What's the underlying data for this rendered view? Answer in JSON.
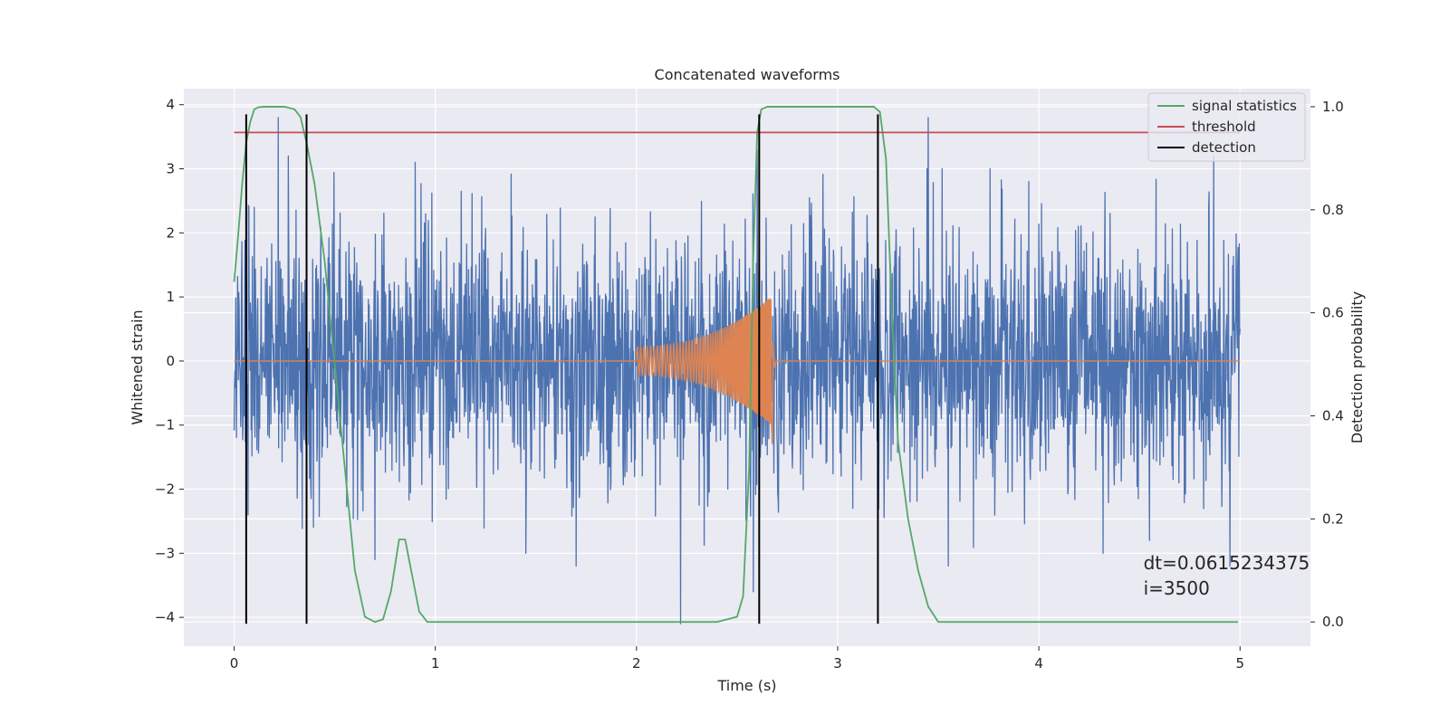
{
  "chart_data": {
    "type": "line",
    "title": "Concatenated waveforms",
    "xlabel": "Time (s)",
    "ylabel": "Whitened strain",
    "y2label": "Detection probability",
    "xlim": [
      -0.25,
      5.35
    ],
    "ylim": [
      -4.45,
      4.25
    ],
    "y2lim": [
      -0.047,
      1.035
    ],
    "xticks": [
      0,
      1,
      2,
      3,
      4,
      5
    ],
    "xtick_labels": [
      "0",
      "1",
      "2",
      "3",
      "4",
      "5"
    ],
    "yticks": [
      -4,
      -3,
      -2,
      -1,
      0,
      1,
      2,
      3,
      4
    ],
    "ytick_labels": [
      "−4",
      "−3",
      "−2",
      "−1",
      "0",
      "1",
      "2",
      "3",
      "4"
    ],
    "y2ticks": [
      0.0,
      0.2,
      0.4,
      0.6,
      0.8,
      1.0
    ],
    "y2tick_labels": [
      "0.0",
      "0.2",
      "0.4",
      "0.6",
      "0.8",
      "1.0"
    ],
    "grid": true,
    "legend_position": "top-right",
    "legend": [
      {
        "label": "signal statistics",
        "color": "#55a868"
      },
      {
        "label": "threshold",
        "color": "#c44e52"
      },
      {
        "label": "detection",
        "color": "#000000"
      }
    ],
    "series": [
      {
        "kind": "noise",
        "axis": "left",
        "color": "#4c72b0",
        "x_range": [
          0,
          5
        ],
        "typical_amplitude": 1.0,
        "extremes": [
          {
            "x": 0.1,
            "y": 2.4
          },
          {
            "x": 0.22,
            "y": 3.8
          },
          {
            "x": 0.27,
            "y": 3.2
          },
          {
            "x": 0.07,
            "y": -2.4
          },
          {
            "x": 0.7,
            "y": -3.1
          },
          {
            "x": 0.9,
            "y": 3.1
          },
          {
            "x": 1.45,
            "y": -3.0
          },
          {
            "x": 1.7,
            "y": -3.2
          },
          {
            "x": 2.22,
            "y": -4.1
          },
          {
            "x": 2.58,
            "y": -3.6
          },
          {
            "x": 2.6,
            "y": 3.3
          },
          {
            "x": 3.45,
            "y": 3.8
          },
          {
            "x": 3.55,
            "y": -3.2
          },
          {
            "x": 3.95,
            "y": 2.8
          },
          {
            "x": 4.55,
            "y": -2.8
          },
          {
            "x": 4.87,
            "y": 3.2
          },
          {
            "x": 4.95,
            "y": -3.2
          }
        ]
      },
      {
        "kind": "chirp",
        "axis": "left",
        "color": "#dd8452",
        "x_range": [
          0,
          5
        ],
        "chirp_start": 2.0,
        "chirp_peak": 2.67,
        "start_amplitude": 0.22,
        "peak_amplitude": 1.0,
        "min_value": -1.3
      },
      {
        "name": "signal statistics",
        "axis": "right",
        "color": "#55a868",
        "x": [
          0,
          0.02,
          0.04,
          0.06,
          0.08,
          0.1,
          0.12,
          0.15,
          0.2,
          0.25,
          0.3,
          0.33,
          0.36,
          0.4,
          0.45,
          0.5,
          0.55,
          0.6,
          0.65,
          0.7,
          0.74,
          0.78,
          0.82,
          0.85,
          0.88,
          0.92,
          0.96,
          1.0,
          1.5,
          2.0,
          2.4,
          2.5,
          2.53,
          2.56,
          2.58,
          2.6,
          2.62,
          2.65,
          2.7,
          3.0,
          3.18,
          3.21,
          3.24,
          3.27,
          3.3,
          3.35,
          3.4,
          3.45,
          3.5,
          4.0,
          4.9,
          4.99
        ],
        "y": [
          0.66,
          0.75,
          0.85,
          0.93,
          0.97,
          0.995,
          0.999,
          1.0,
          1.0,
          1.0,
          0.995,
          0.98,
          0.93,
          0.85,
          0.7,
          0.5,
          0.3,
          0.1,
          0.01,
          0.0,
          0.005,
          0.06,
          0.16,
          0.16,
          0.1,
          0.02,
          0.0,
          0.0,
          0.0,
          0.0,
          0.0,
          0.01,
          0.05,
          0.3,
          0.7,
          0.95,
          0.995,
          1.0,
          1.0,
          1.0,
          1.0,
          0.99,
          0.9,
          0.6,
          0.35,
          0.2,
          0.1,
          0.03,
          0.0,
          0.0,
          0.0,
          0.0
        ]
      },
      {
        "name": "threshold",
        "axis": "right",
        "color": "#c44e52",
        "x": [
          0,
          5
        ],
        "y": [
          0.95,
          0.95
        ]
      }
    ],
    "detections": [
      0.06,
      0.36,
      2.61,
      3.2
    ],
    "detection_range": [
      -4.1,
      3.85
    ],
    "annotation": [
      "dt=0.0615234375",
      " i=3500"
    ],
    "annotation_anchor": [
      4.52,
      -3.25
    ]
  }
}
